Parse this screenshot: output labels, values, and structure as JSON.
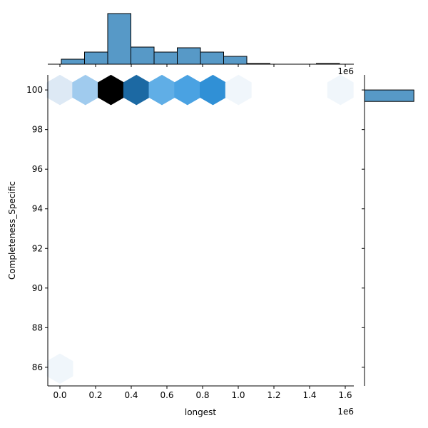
{
  "chart_data": {
    "type": "hexbin",
    "x_label": "longest",
    "y_label": "Completeness_Specific",
    "xlim": [
      -0.068,
      1.648
    ],
    "ylim": [
      85.06,
      100.76
    ],
    "xticks": [
      {
        "value": 0,
        "label": "0.0"
      },
      {
        "value": 0.2,
        "label": "0.2"
      },
      {
        "value": 0.4,
        "label": "0.4"
      },
      {
        "value": 0.6,
        "label": "0.6"
      },
      {
        "value": 0.8,
        "label": "0.8"
      },
      {
        "value": 1.0,
        "label": "1.0"
      },
      {
        "value": 1.2,
        "label": "1.2"
      },
      {
        "value": 1.4,
        "label": "1.4"
      },
      {
        "value": 1.6,
        "label": "1.6"
      }
    ],
    "yticks": [
      86,
      88,
      90,
      92,
      94,
      96,
      98,
      100
    ],
    "x_offset_label": "1e6",
    "hexbins": {
      "x": [
        0,
        0.143,
        0.286,
        0.429,
        0.572,
        0.715,
        0.858,
        1.001,
        1.573,
        0
      ],
      "y": [
        100,
        100,
        100,
        100,
        100,
        100,
        100,
        100,
        100,
        85.93
      ],
      "colors": [
        "#dde9f5",
        "#a0cbee",
        "#000000",
        "#1c69a3",
        "#60aee6",
        "#4aa2e2",
        "#3090d6",
        "#f0f6fb",
        "#f0f6fb",
        "#f0f6fb"
      ]
    },
    "x_hist": {
      "bins": [
        0.008,
        0.138,
        0.268,
        0.398,
        0.528,
        0.658,
        0.788,
        0.918,
        1.048,
        1.178,
        1.308,
        1.438,
        1.568
      ],
      "counts": [
        7,
        17,
        71,
        24,
        17,
        23,
        17,
        11,
        1,
        0,
        0,
        1
      ],
      "ylim": [
        0,
        75
      ],
      "offset_label": "1e6"
    },
    "y_hist": {
      "bins": [
        99.42,
        100.0
      ],
      "counts": [
        187
      ],
      "xlim": [
        0,
        200
      ]
    },
    "hist_color": "#5799c7"
  }
}
